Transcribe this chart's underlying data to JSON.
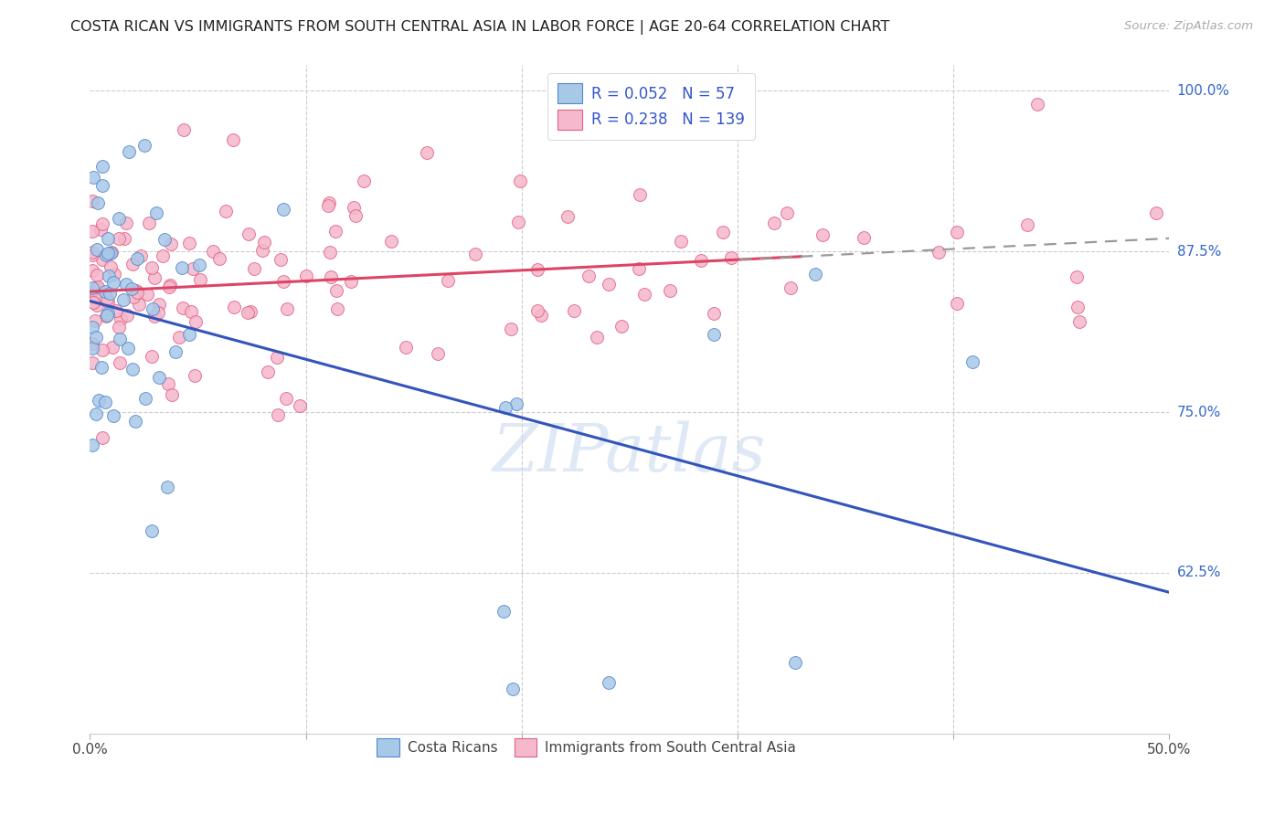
{
  "title": "COSTA RICAN VS IMMIGRANTS FROM SOUTH CENTRAL ASIA IN LABOR FORCE | AGE 20-64 CORRELATION CHART",
  "source": "Source: ZipAtlas.com",
  "ylabel": "In Labor Force | Age 20-64",
  "xlim": [
    0.0,
    0.5
  ],
  "ylim": [
    0.5,
    1.02
  ],
  "blue_color": "#a8c8e8",
  "blue_edge_color": "#5588cc",
  "pink_color": "#f5b8cc",
  "pink_edge_color": "#e06080",
  "blue_line_color": "#3355bb",
  "pink_line_color": "#dd4466",
  "dashed_line_color": "#999999",
  "legend_blue_color": "#a8c8e8",
  "legend_pink_color": "#f5b8cc",
  "legend_blue_edge": "#5588cc",
  "legend_pink_edge": "#e06080",
  "legend_R_blue": "0.052",
  "legend_N_blue": "57",
  "legend_R_pink": "0.238",
  "legend_N_pink": "139",
  "legend_label_blue": "Costa Ricans",
  "legend_label_pink": "Immigrants from South Central Asia",
  "ytick_positions": [
    0.625,
    0.75,
    0.875,
    1.0
  ],
  "ytick_labels": [
    "62.5%",
    "75.0%",
    "87.5%",
    "100.0%"
  ],
  "xtick_positions": [
    0.0,
    0.1,
    0.2,
    0.3,
    0.4,
    0.5
  ],
  "xtick_labels": [
    "0.0%",
    "",
    "",
    "",
    "",
    "50.0%"
  ]
}
